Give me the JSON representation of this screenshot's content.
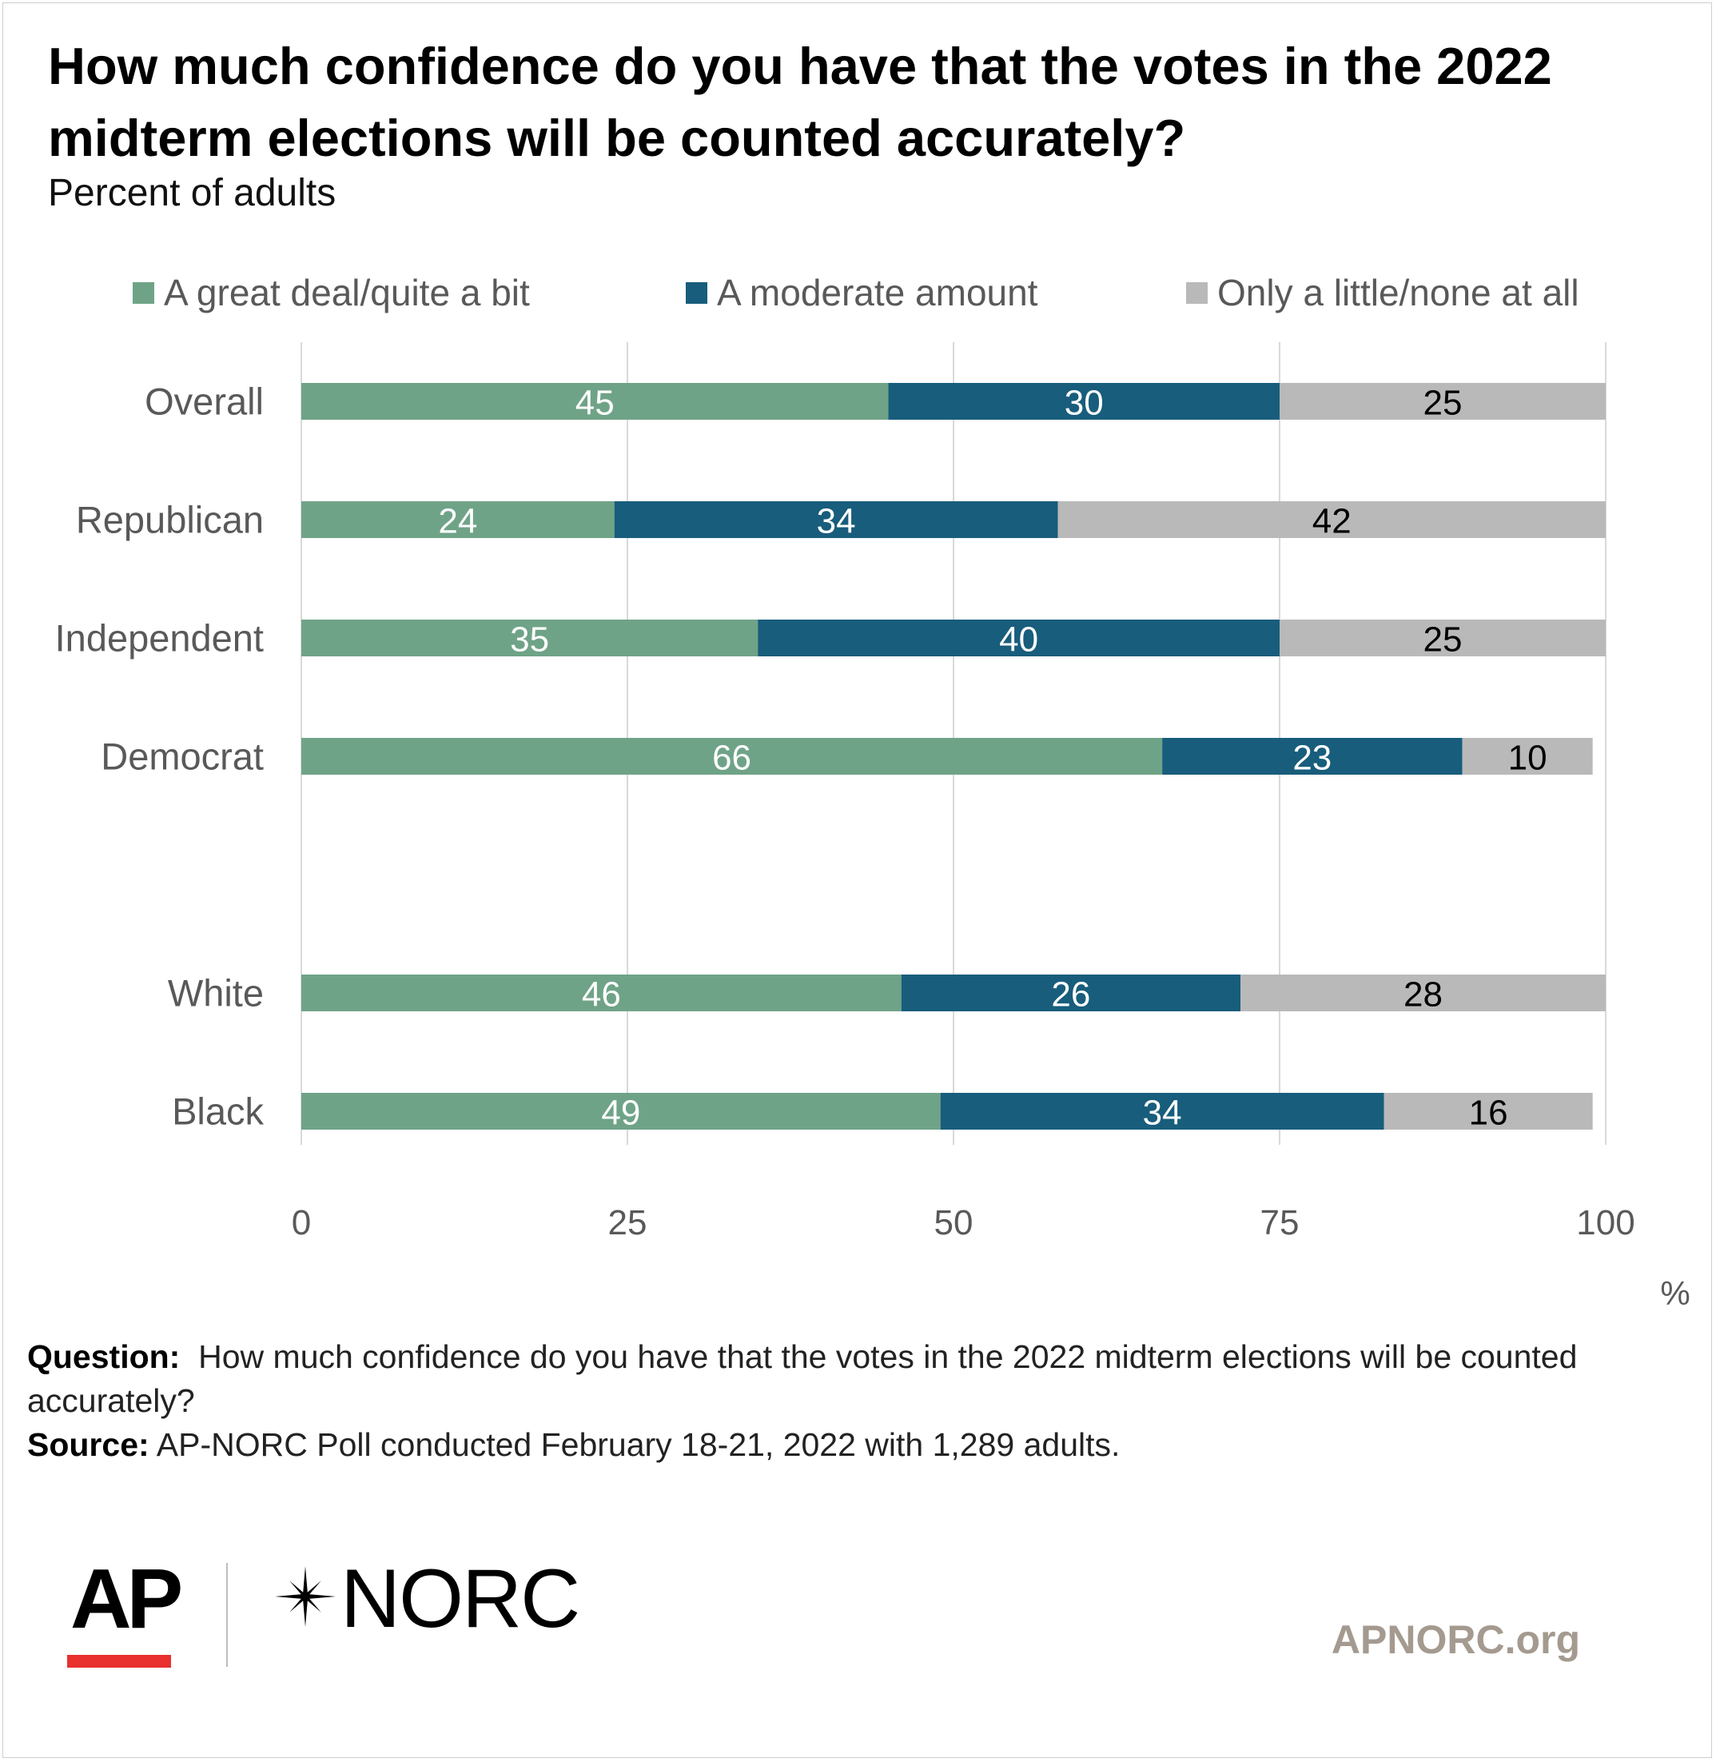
{
  "chart_data": {
    "type": "bar",
    "orientation": "horizontal",
    "stacked": true,
    "title": "How much confidence do you have that the votes in the 2022 midterm elections will be counted accurately?",
    "subtitle": "Percent of adults",
    "categories": [
      "Overall",
      "Republican",
      "Independent",
      "Democrat",
      "White",
      "Black"
    ],
    "category_gaps_after": [
      "Democrat"
    ],
    "series": [
      {
        "name": "A great deal/quite a bit",
        "color": "#6fa387",
        "label_color": "#ffffff",
        "values": [
          45,
          24,
          35,
          66,
          46,
          49
        ]
      },
      {
        "name": "A moderate amount",
        "color": "#185d7c",
        "label_color": "#ffffff",
        "values": [
          30,
          34,
          40,
          23,
          26,
          34
        ]
      },
      {
        "name": "Only a little/none at all",
        "color": "#b9b9b9",
        "label_color": "#000000",
        "values": [
          25,
          42,
          25,
          10,
          28,
          16
        ]
      }
    ],
    "xlim": [
      0,
      100
    ],
    "xticks": [
      "0",
      "25",
      "50",
      "75",
      "100"
    ],
    "xunit": "%",
    "grid": true,
    "legend_position": "top"
  },
  "footnote": {
    "question_label": "Question:",
    "question_text": "How much confidence do you have that the votes in the 2022 midterm elections will be counted accurately?",
    "source_label": "Source:",
    "source_text": "AP-NORC Poll conducted February 18-21, 2022 with 1,289 adults."
  },
  "branding": {
    "ap_logo": "AP",
    "norc_logo": "NORC",
    "website": "APNORC.org",
    "ap_accent_color": "#e8302f"
  }
}
